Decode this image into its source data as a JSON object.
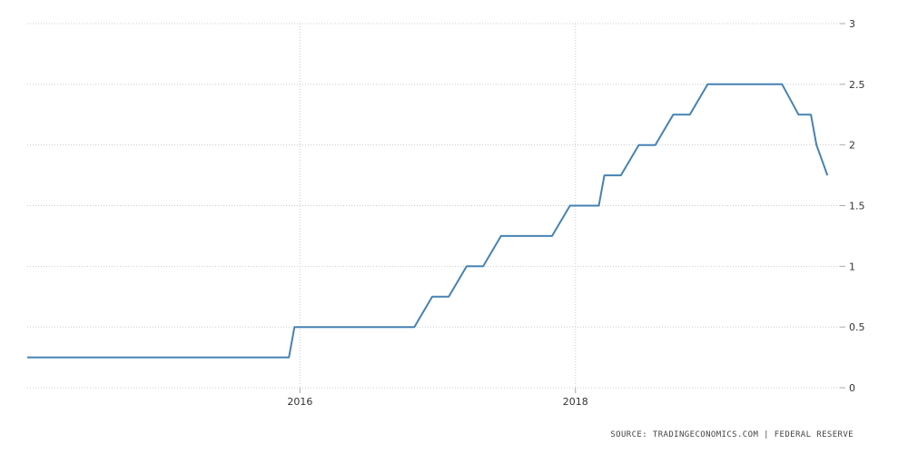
{
  "chart_data": {
    "type": "line",
    "title": "",
    "xlabel": "",
    "ylabel": "",
    "ylim": [
      0,
      3
    ],
    "y_ticks": [
      "0",
      "0.5",
      "1",
      "1.5",
      "2",
      "2.5",
      "3"
    ],
    "x_ticks": [
      {
        "label": "2016",
        "value": 2016.0
      },
      {
        "label": "2018",
        "value": 2018.0
      }
    ],
    "xlim": [
      2014.02,
      2019.92
    ],
    "grid": true,
    "y_axis_side": "right",
    "series": [
      {
        "color": "#4682b4",
        "points": [
          [
            2014.02,
            0.25
          ],
          [
            2015.92,
            0.25
          ],
          [
            2015.96,
            0.5
          ],
          [
            2016.83,
            0.5
          ],
          [
            2016.96,
            0.75
          ],
          [
            2017.08,
            0.75
          ],
          [
            2017.21,
            1.0
          ],
          [
            2017.33,
            1.0
          ],
          [
            2017.46,
            1.25
          ],
          [
            2017.83,
            1.25
          ],
          [
            2017.96,
            1.5
          ],
          [
            2018.17,
            1.5
          ],
          [
            2018.21,
            1.75
          ],
          [
            2018.33,
            1.75
          ],
          [
            2018.46,
            2.0
          ],
          [
            2018.58,
            2.0
          ],
          [
            2018.71,
            2.25
          ],
          [
            2018.83,
            2.25
          ],
          [
            2018.96,
            2.5
          ],
          [
            2019.5,
            2.5
          ],
          [
            2019.62,
            2.25
          ],
          [
            2019.71,
            2.25
          ],
          [
            2019.75,
            2.0
          ],
          [
            2019.83,
            1.75
          ]
        ]
      }
    ]
  },
  "source_text": "SOURCE: TRADINGECONOMICS.COM | FEDERAL RESERVE"
}
